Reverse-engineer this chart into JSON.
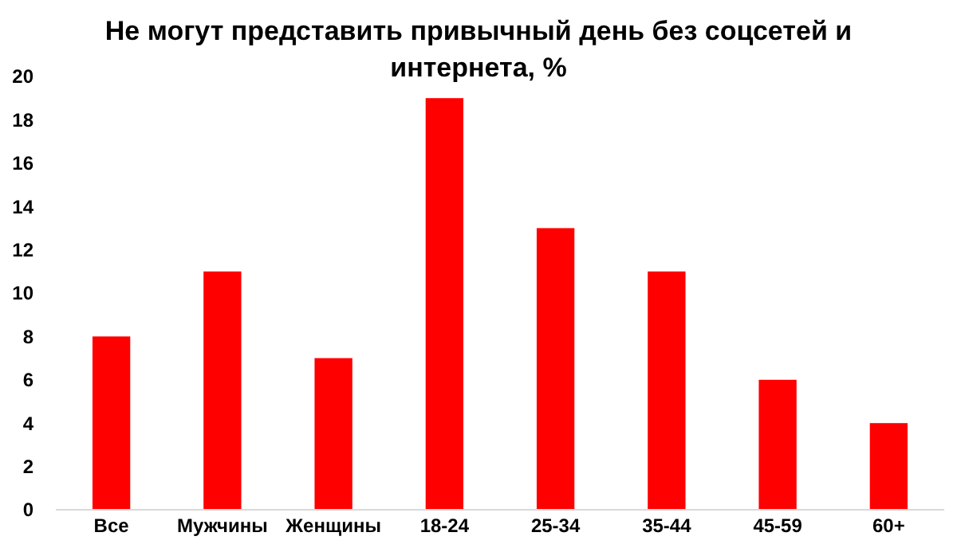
{
  "chart_data": {
    "type": "bar",
    "title": "Не могут представить привычный день без соцсетей и интернета, %",
    "categories": [
      "Все",
      "Мужчины",
      "Женщины",
      "18-24",
      "25-34",
      "35-44",
      "45-59",
      "60+"
    ],
    "values": [
      8,
      11,
      7,
      19,
      13,
      11,
      6,
      4
    ],
    "color": "#ff0000",
    "ylim": [
      0,
      20
    ],
    "yticks": [
      0,
      2,
      4,
      6,
      8,
      10,
      12,
      14,
      16,
      18,
      20
    ],
    "grid": false
  }
}
